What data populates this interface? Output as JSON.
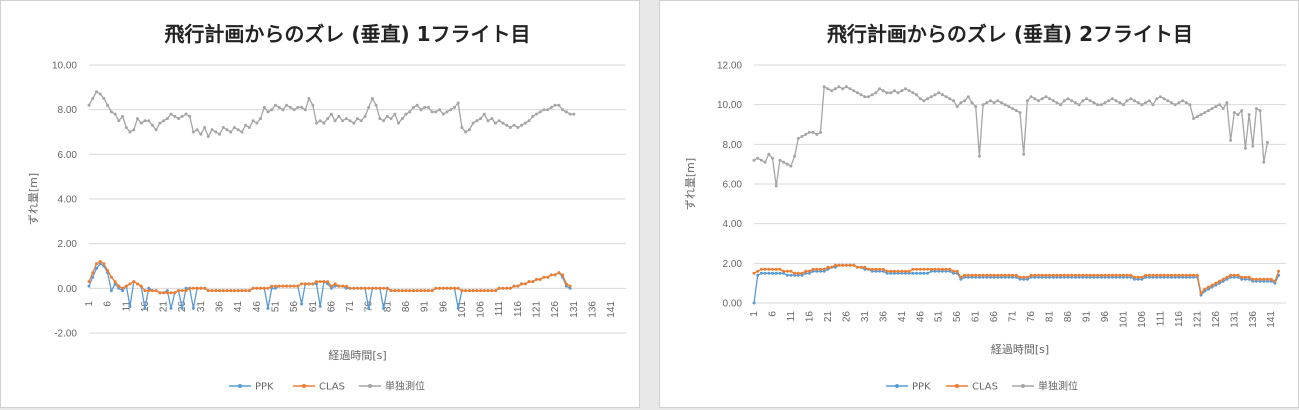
{
  "colors": {
    "PPK": "#5b9bd5",
    "CLAS": "#ed7d31",
    "single": "#a5a5a5",
    "grid": "#d9d9d9"
  },
  "chart_data": [
    {
      "type": "line",
      "title": "飛行計画からのズレ (垂直) 1フライト目",
      "xlabel": "経過時間[s]",
      "ylabel": "ずれ量[m]",
      "ylim": [
        -2,
        10
      ],
      "yticks": [
        -2,
        0,
        2,
        4,
        6,
        8,
        10
      ],
      "ytick_labels": [
        "-2.00",
        "0.00",
        "2.00",
        "4.00",
        "6.00",
        "8.00",
        "10.00"
      ],
      "xlim": [
        1,
        145
      ],
      "xticks": [
        1,
        6,
        11,
        16,
        21,
        26,
        31,
        36,
        41,
        46,
        51,
        56,
        61,
        66,
        71,
        76,
        81,
        86,
        91,
        96,
        101,
        106,
        111,
        116,
        121,
        126,
        131,
        136,
        141
      ],
      "xtick_labels": [
        "1",
        "6",
        "11",
        "16",
        "21",
        "26",
        "31",
        "36",
        "41",
        "46",
        "51",
        "56",
        "61",
        "66",
        "71",
        "76",
        "81",
        "86",
        "91",
        "96",
        "101",
        "106",
        "111",
        "116",
        "121",
        "126",
        "131",
        "136",
        "141"
      ],
      "grid": true,
      "legend_position": "bottom",
      "series": [
        {
          "name": "PPK",
          "color_key": "PPK",
          "values": [
            0.1,
            0.5,
            0.9,
            1.1,
            1.0,
            0.7,
            -0.1,
            0.2,
            0.0,
            -0.1,
            0.1,
            -0.8,
            0.3,
            0.2,
            0.1,
            -0.9,
            0.0,
            -0.1,
            -0.1,
            -0.2,
            -0.2,
            -0.1,
            -0.9,
            -0.2,
            -0.1,
            -0.9,
            0.0,
            0.0,
            -0.9,
            0.0,
            0.0,
            0.0,
            -0.1,
            -0.1,
            -0.1,
            -0.1,
            -0.1,
            -0.1,
            -0.1,
            -0.1,
            -0.1,
            -0.1,
            -0.1,
            -0.1,
            0.0,
            0.0,
            0.0,
            0.0,
            -0.9,
            0.0,
            0.0,
            0.1,
            0.1,
            0.1,
            0.1,
            0.1,
            0.1,
            -0.7,
            0.2,
            0.2,
            0.2,
            0.2,
            -0.8,
            0.3,
            0.2,
            0.0,
            0.1,
            0.1,
            0.1,
            0.0,
            0.0,
            0.0,
            0.0,
            0.0,
            0.0,
            -0.9,
            0.0,
            0.0,
            0.0,
            -0.9,
            0.0,
            -0.1,
            -0.1,
            -0.1,
            -0.1,
            -0.1,
            -0.1,
            -0.1,
            -0.1,
            -0.1,
            -0.1,
            -0.1,
            -0.1,
            0.0,
            0.0,
            0.0,
            0.0,
            0.0,
            0.0,
            -0.9,
            -0.1,
            -0.1,
            -0.1,
            -0.1,
            -0.1,
            -0.1,
            -0.1,
            -0.1,
            -0.1,
            -0.1,
            0.0,
            0.0,
            0.0,
            0.0,
            0.1,
            0.1,
            0.2,
            0.2,
            0.3,
            0.3,
            0.4,
            0.4,
            0.5,
            0.5,
            0.6,
            0.6,
            0.7,
            0.5,
            0.1,
            0.0
          ]
        },
        {
          "name": "CLAS",
          "color_key": "CLAS",
          "values": [
            0.3,
            0.7,
            1.1,
            1.2,
            1.1,
            0.8,
            0.5,
            0.3,
            0.1,
            0.0,
            0.1,
            0.2,
            0.3,
            0.2,
            0.1,
            -0.1,
            -0.1,
            -0.1,
            -0.1,
            -0.2,
            -0.2,
            -0.2,
            -0.2,
            -0.2,
            -0.1,
            -0.1,
            -0.1,
            0.0,
            0.0,
            0.0,
            0.0,
            0.0,
            -0.1,
            -0.1,
            -0.1,
            -0.1,
            -0.1,
            -0.1,
            -0.1,
            -0.1,
            -0.1,
            -0.1,
            -0.1,
            -0.1,
            0.0,
            0.0,
            0.0,
            0.0,
            0.0,
            0.1,
            0.1,
            0.1,
            0.1,
            0.1,
            0.1,
            0.1,
            0.1,
            0.2,
            0.2,
            0.2,
            0.2,
            0.3,
            0.3,
            0.3,
            0.3,
            0.1,
            0.2,
            0.1,
            0.1,
            0.1,
            0.0,
            0.0,
            0.0,
            0.0,
            0.0,
            0.0,
            0.0,
            0.0,
            0.0,
            0.0,
            0.0,
            -0.1,
            -0.1,
            -0.1,
            -0.1,
            -0.1,
            -0.1,
            -0.1,
            -0.1,
            -0.1,
            -0.1,
            -0.1,
            -0.1,
            0.0,
            0.0,
            0.0,
            0.0,
            0.0,
            0.0,
            0.0,
            -0.1,
            -0.1,
            -0.1,
            -0.1,
            -0.1,
            -0.1,
            -0.1,
            -0.1,
            -0.1,
            -0.1,
            0.0,
            0.0,
            0.0,
            0.0,
            0.1,
            0.1,
            0.2,
            0.2,
            0.3,
            0.3,
            0.4,
            0.4,
            0.5,
            0.5,
            0.6,
            0.6,
            0.7,
            0.6,
            0.2,
            0.1
          ]
        },
        {
          "name": "単独測位",
          "color_key": "single",
          "values": [
            8.2,
            8.5,
            8.8,
            8.7,
            8.5,
            8.2,
            7.9,
            7.8,
            7.5,
            7.7,
            7.2,
            7.0,
            7.1,
            7.6,
            7.4,
            7.5,
            7.5,
            7.3,
            7.1,
            7.4,
            7.5,
            7.6,
            7.8,
            7.7,
            7.6,
            7.7,
            7.8,
            7.7,
            7.0,
            7.1,
            6.9,
            7.2,
            6.8,
            7.1,
            7.0,
            6.9,
            7.2,
            7.1,
            7.0,
            7.2,
            7.1,
            7.0,
            7.3,
            7.2,
            7.5,
            7.4,
            7.6,
            8.1,
            7.9,
            8.0,
            8.2,
            8.1,
            8.0,
            8.2,
            8.1,
            8.0,
            8.1,
            8.1,
            8.0,
            8.5,
            8.2,
            7.4,
            7.5,
            7.4,
            7.6,
            7.8,
            7.5,
            7.7,
            7.5,
            7.6,
            7.5,
            7.4,
            7.6,
            7.5,
            7.7,
            8.1,
            8.5,
            8.2,
            7.6,
            7.5,
            7.7,
            7.6,
            7.8,
            7.4,
            7.6,
            7.8,
            7.9,
            8.1,
            8.2,
            8.0,
            8.1,
            8.1,
            7.9,
            7.9,
            8.0,
            7.8,
            7.9,
            8.0,
            8.1,
            8.3,
            7.2,
            7.0,
            7.1,
            7.4,
            7.5,
            7.6,
            7.8,
            7.5,
            7.6,
            7.4,
            7.5,
            7.4,
            7.3,
            7.2,
            7.3,
            7.2,
            7.3,
            7.4,
            7.5,
            7.7,
            7.8,
            7.9,
            8.0,
            8.0,
            8.1,
            8.2,
            8.2,
            8.0,
            7.9,
            7.8,
            7.8
          ]
        }
      ]
    },
    {
      "type": "line",
      "title": "飛行計画からのズレ (垂直) 2フライト目",
      "xlabel": "経過時間[s]",
      "ylabel": "ずれ量[m]",
      "ylim": [
        0,
        12
      ],
      "yticks": [
        0,
        2,
        4,
        6,
        8,
        10,
        12
      ],
      "ytick_labels": [
        "0.00",
        "2.00",
        "4.00",
        "6.00",
        "8.00",
        "10.00",
        "12.00"
      ],
      "xlim": [
        1,
        145
      ],
      "xticks": [
        1,
        6,
        11,
        16,
        21,
        26,
        31,
        36,
        41,
        46,
        51,
        56,
        61,
        66,
        71,
        76,
        81,
        86,
        91,
        96,
        101,
        106,
        111,
        116,
        121,
        126,
        131,
        136,
        141
      ],
      "xtick_labels": [
        "1",
        "6",
        "11",
        "16",
        "21",
        "26",
        "31",
        "36",
        "41",
        "46",
        "51",
        "56",
        "61",
        "66",
        "71",
        "76",
        "81",
        "86",
        "91",
        "96",
        "101",
        "106",
        "111",
        "116",
        "121",
        "126",
        "131",
        "136",
        "141"
      ],
      "grid": true,
      "legend_position": "bottom",
      "series": [
        {
          "name": "PPK",
          "color_key": "PPK",
          "values": [
            0.0,
            1.4,
            1.5,
            1.5,
            1.5,
            1.5,
            1.5,
            1.5,
            1.5,
            1.4,
            1.4,
            1.4,
            1.4,
            1.4,
            1.5,
            1.5,
            1.6,
            1.6,
            1.6,
            1.6,
            1.7,
            1.8,
            1.8,
            1.9,
            1.9,
            1.9,
            1.9,
            1.9,
            1.8,
            1.8,
            1.7,
            1.7,
            1.6,
            1.6,
            1.6,
            1.6,
            1.5,
            1.5,
            1.5,
            1.5,
            1.5,
            1.5,
            1.5,
            1.5,
            1.5,
            1.5,
            1.5,
            1.5,
            1.6,
            1.6,
            1.6,
            1.6,
            1.6,
            1.6,
            1.5,
            1.5,
            1.2,
            1.3,
            1.3,
            1.3,
            1.3,
            1.3,
            1.3,
            1.3,
            1.3,
            1.3,
            1.3,
            1.3,
            1.3,
            1.3,
            1.3,
            1.3,
            1.2,
            1.2,
            1.2,
            1.3,
            1.3,
            1.3,
            1.3,
            1.3,
            1.3,
            1.3,
            1.3,
            1.3,
            1.3,
            1.3,
            1.3,
            1.3,
            1.3,
            1.3,
            1.3,
            1.3,
            1.3,
            1.3,
            1.3,
            1.3,
            1.3,
            1.3,
            1.3,
            1.3,
            1.3,
            1.3,
            1.3,
            1.2,
            1.2,
            1.2,
            1.3,
            1.3,
            1.3,
            1.3,
            1.3,
            1.3,
            1.3,
            1.3,
            1.3,
            1.3,
            1.3,
            1.3,
            1.3,
            1.3,
            1.3,
            0.4,
            0.6,
            0.7,
            0.8,
            0.9,
            1.0,
            1.1,
            1.2,
            1.3,
            1.3,
            1.3,
            1.2,
            1.2,
            1.2,
            1.1,
            1.1,
            1.1,
            1.1,
            1.1,
            1.1,
            1.0,
            1.4
          ]
        },
        {
          "name": "CLAS",
          "color_key": "CLAS",
          "values": [
            1.5,
            1.6,
            1.7,
            1.7,
            1.7,
            1.7,
            1.7,
            1.7,
            1.6,
            1.6,
            1.6,
            1.5,
            1.5,
            1.5,
            1.6,
            1.6,
            1.7,
            1.7,
            1.7,
            1.7,
            1.8,
            1.8,
            1.9,
            1.9,
            1.9,
            1.9,
            1.9,
            1.9,
            1.8,
            1.8,
            1.8,
            1.7,
            1.7,
            1.7,
            1.7,
            1.7,
            1.6,
            1.6,
            1.6,
            1.6,
            1.6,
            1.6,
            1.6,
            1.7,
            1.7,
            1.7,
            1.7,
            1.7,
            1.7,
            1.7,
            1.7,
            1.7,
            1.7,
            1.7,
            1.6,
            1.6,
            1.3,
            1.4,
            1.4,
            1.4,
            1.4,
            1.4,
            1.4,
            1.4,
            1.4,
            1.4,
            1.4,
            1.4,
            1.4,
            1.4,
            1.4,
            1.4,
            1.3,
            1.3,
            1.3,
            1.4,
            1.4,
            1.4,
            1.4,
            1.4,
            1.4,
            1.4,
            1.4,
            1.4,
            1.4,
            1.4,
            1.4,
            1.4,
            1.4,
            1.4,
            1.4,
            1.4,
            1.4,
            1.4,
            1.4,
            1.4,
            1.4,
            1.4,
            1.4,
            1.4,
            1.4,
            1.4,
            1.4,
            1.3,
            1.3,
            1.3,
            1.4,
            1.4,
            1.4,
            1.4,
            1.4,
            1.4,
            1.4,
            1.4,
            1.4,
            1.4,
            1.4,
            1.4,
            1.4,
            1.4,
            1.4,
            0.5,
            0.7,
            0.8,
            0.9,
            1.0,
            1.1,
            1.2,
            1.3,
            1.4,
            1.4,
            1.4,
            1.3,
            1.3,
            1.3,
            1.2,
            1.2,
            1.2,
            1.2,
            1.2,
            1.2,
            1.1,
            1.6
          ]
        },
        {
          "name": "単独測位",
          "color_key": "single",
          "values": [
            7.2,
            7.3,
            7.2,
            7.1,
            7.5,
            7.3,
            5.9,
            7.2,
            7.1,
            7.0,
            6.9,
            7.4,
            8.3,
            8.4,
            8.5,
            8.6,
            8.6,
            8.5,
            8.6,
            10.9,
            10.8,
            10.7,
            10.8,
            10.9,
            10.8,
            10.9,
            10.8,
            10.7,
            10.6,
            10.5,
            10.4,
            10.4,
            10.5,
            10.6,
            10.8,
            10.7,
            10.6,
            10.6,
            10.7,
            10.6,
            10.7,
            10.8,
            10.7,
            10.6,
            10.5,
            10.3,
            10.2,
            10.3,
            10.4,
            10.5,
            10.6,
            10.5,
            10.4,
            10.3,
            10.2,
            9.9,
            10.1,
            10.2,
            10.4,
            10.1,
            9.9,
            7.4,
            10.0,
            10.1,
            10.2,
            10.1,
            10.2,
            10.1,
            10.0,
            9.9,
            9.8,
            9.7,
            9.6,
            7.5,
            10.2,
            10.4,
            10.3,
            10.2,
            10.3,
            10.4,
            10.3,
            10.2,
            10.1,
            10.0,
            10.2,
            10.3,
            10.2,
            10.1,
            10.0,
            10.2,
            10.3,
            10.2,
            10.1,
            10.0,
            10.0,
            10.1,
            10.2,
            10.3,
            10.2,
            10.1,
            10.0,
            10.2,
            10.3,
            10.2,
            10.1,
            10.0,
            10.1,
            10.2,
            10.0,
            10.3,
            10.4,
            10.3,
            10.2,
            10.1,
            10.0,
            10.1,
            10.2,
            10.1,
            10.0,
            9.3,
            9.4,
            9.5,
            9.6,
            9.7,
            9.8,
            9.9,
            10.0,
            9.8,
            10.1,
            8.2,
            9.6,
            9.5,
            9.7,
            7.8,
            9.5,
            7.9,
            9.8,
            9.7,
            7.1,
            8.1
          ]
        }
      ]
    }
  ]
}
